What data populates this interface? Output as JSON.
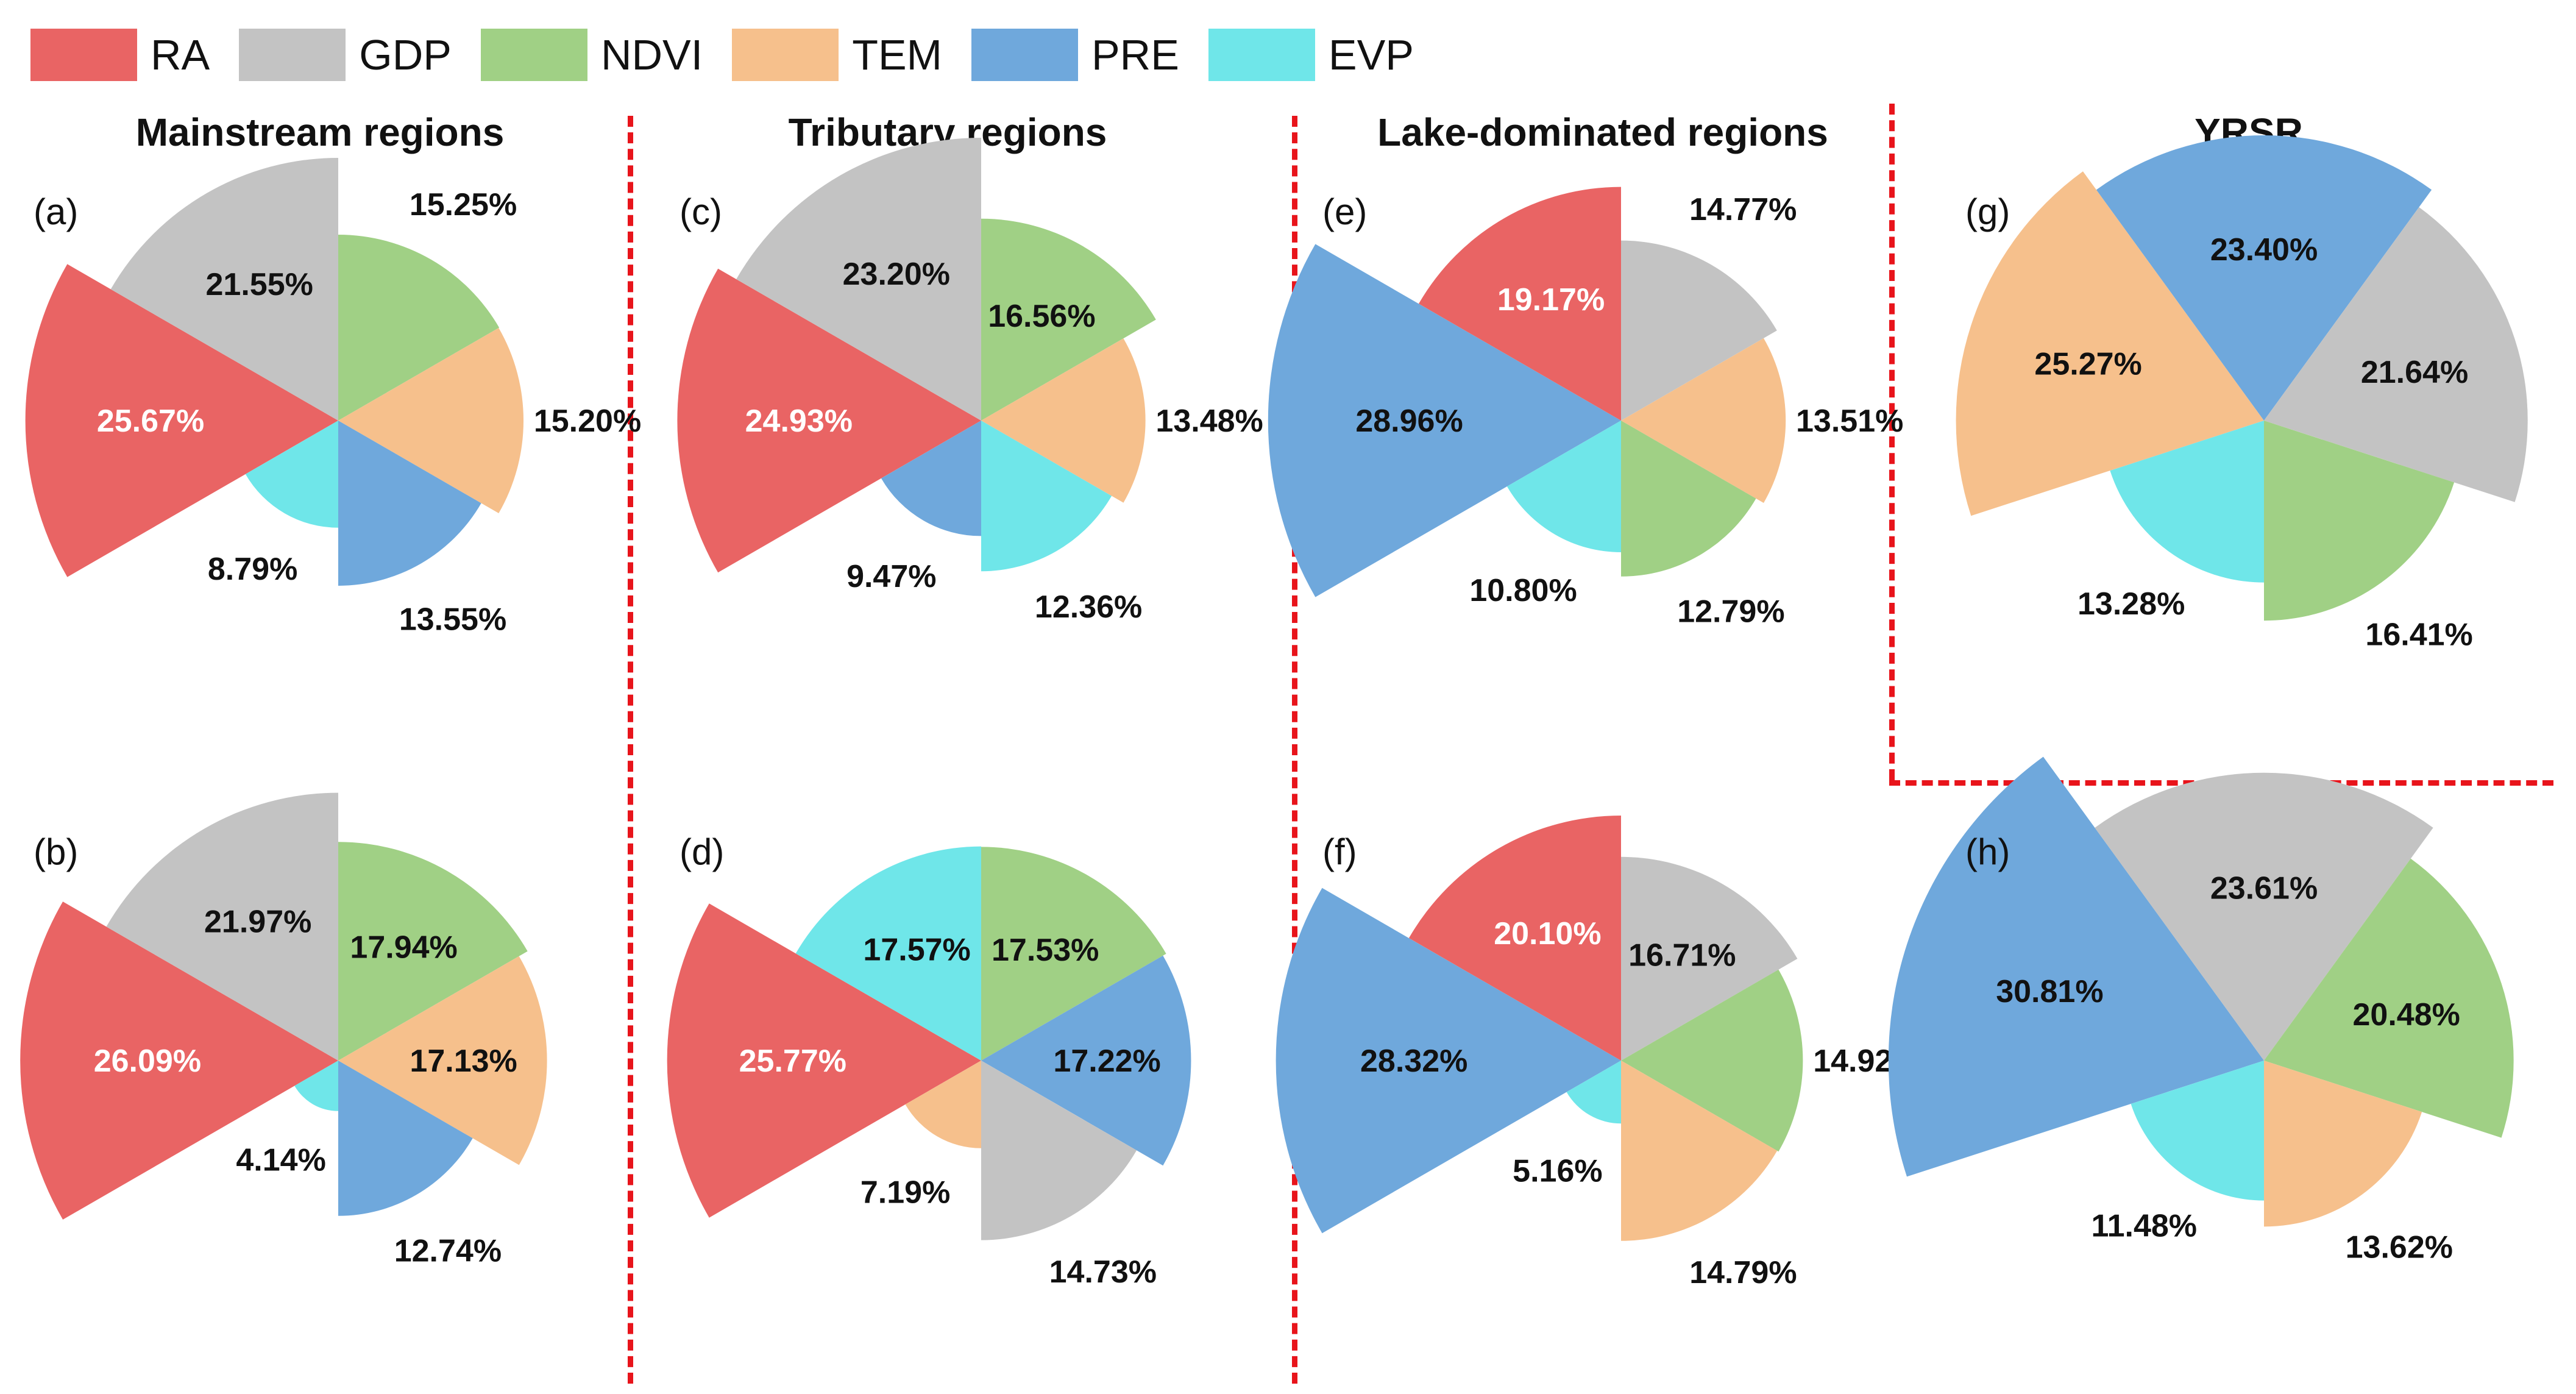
{
  "legend": [
    {
      "name": "RA",
      "color": "#e96464"
    },
    {
      "name": "GDP",
      "color": "#c3c3c3"
    },
    {
      "name": "NDVI",
      "color": "#a0d085"
    },
    {
      "name": "TEM",
      "color": "#f6c08c"
    },
    {
      "name": "PRE",
      "color": "#6fa8dc"
    },
    {
      "name": "EVP",
      "color": "#6fe6e9"
    }
  ],
  "region_titles": {
    "mainstream": "Mainstream regions",
    "tributary": "Tributary regions",
    "lake": "Lake-dominated regions",
    "yrsr": "YRSR"
  },
  "chart_data": [
    {
      "type": "pie",
      "panel": "(a)",
      "variant": "rose",
      "categories": [
        "RA",
        "GDP",
        "NDVI",
        "TEM",
        "PRE",
        "EVP"
      ],
      "values": [
        25.67,
        21.55,
        15.25,
        15.2,
        13.55,
        8.79
      ],
      "labels": [
        "25.67%",
        "21.55%",
        "15.25%",
        "15.20%",
        "13.55%",
        "8.79%"
      ]
    },
    {
      "type": "pie",
      "panel": "(b)",
      "variant": "rose",
      "categories": [
        "RA",
        "GDP",
        "NDVI",
        "TEM",
        "PRE",
        "EVP"
      ],
      "values": [
        26.09,
        21.97,
        17.94,
        17.13,
        12.74,
        4.14
      ],
      "labels": [
        "26.09%",
        "21.97%",
        "17.94%",
        "17.13%",
        "12.74%",
        "4.14%"
      ]
    },
    {
      "type": "pie",
      "panel": "(c)",
      "variant": "rose",
      "categories": [
        "RA",
        "GDP",
        "NDVI",
        "TEM",
        "EVP",
        "PRE"
      ],
      "values": [
        24.93,
        23.2,
        16.56,
        13.48,
        12.36,
        9.47
      ],
      "labels": [
        "24.93%",
        "23.20%",
        "16.56%",
        "13.48%",
        "12.36%",
        "9.47%"
      ]
    },
    {
      "type": "pie",
      "panel": "(d)",
      "variant": "rose",
      "categories": [
        "RA",
        "EVP",
        "NDVI",
        "PRE",
        "GDP",
        "TEM"
      ],
      "values": [
        25.77,
        17.57,
        17.53,
        17.22,
        14.73,
        7.19
      ],
      "labels": [
        "25.77%",
        "17.57%",
        "17.53%",
        "17.22%",
        "14.73%",
        "7.19%"
      ]
    },
    {
      "type": "pie",
      "panel": "(e)",
      "variant": "rose",
      "categories": [
        "PRE",
        "RA",
        "GDP",
        "TEM",
        "NDVI",
        "EVP"
      ],
      "values": [
        28.96,
        19.17,
        14.77,
        13.51,
        12.79,
        10.8
      ],
      "labels": [
        "28.96%",
        "19.17%",
        "14.77%",
        "13.51%",
        "12.79%",
        "10.80%"
      ]
    },
    {
      "type": "pie",
      "panel": "(f)",
      "variant": "rose",
      "categories": [
        "PRE",
        "RA",
        "GDP",
        "NDVI",
        "TEM",
        "EVP"
      ],
      "values": [
        28.32,
        20.1,
        16.71,
        14.92,
        14.79,
        5.16
      ],
      "labels": [
        "28.32%",
        "20.10%",
        "16.71%",
        "14.92%",
        "14.79%",
        "5.16%"
      ]
    },
    {
      "type": "pie",
      "panel": "(g)",
      "variant": "rose",
      "categories": [
        "TEM",
        "PRE",
        "GDP",
        "NDVI",
        "EVP"
      ],
      "values": [
        25.27,
        23.4,
        21.64,
        16.41,
        13.28
      ],
      "labels": [
        "25.27%",
        "23.40%",
        "21.64%",
        "16.41%",
        "13.28%"
      ]
    },
    {
      "type": "pie",
      "panel": "(h)",
      "variant": "rose",
      "categories": [
        "PRE",
        "GDP",
        "NDVI",
        "TEM",
        "EVP"
      ],
      "values": [
        30.81,
        23.61,
        20.48,
        13.62,
        11.48
      ],
      "labels": [
        "30.81%",
        "23.61%",
        "20.48%",
        "13.62%",
        "11.48%"
      ]
    }
  ]
}
